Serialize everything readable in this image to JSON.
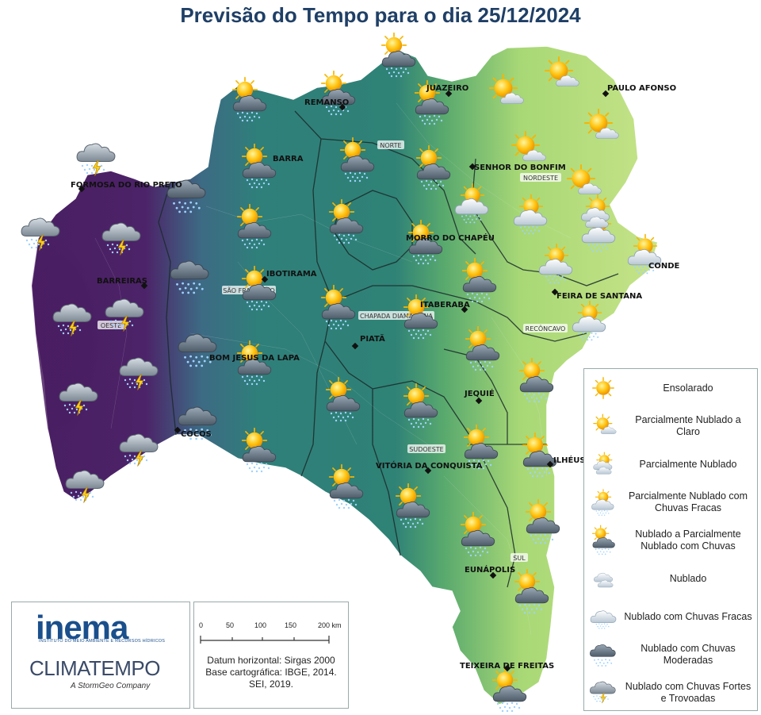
{
  "title": "Previsão do Tempo para o dia 25/12/2024",
  "cities": [
    {
      "name": "REMANSO"
    },
    {
      "name": "JUAZEIRO"
    },
    {
      "name": "PAULO AFONSO"
    },
    {
      "name": "BARRA"
    },
    {
      "name": "SENHOR DO BONFIM"
    },
    {
      "name": "FORMOSA DO RIO PRETO"
    },
    {
      "name": "MORRO DO CHAPÉU"
    },
    {
      "name": "CONDE"
    },
    {
      "name": "BARREIRAS"
    },
    {
      "name": "IBOTIRAMA"
    },
    {
      "name": "FEIRA DE SANTANA"
    },
    {
      "name": "ITABERABA"
    },
    {
      "name": "PIATÃ"
    },
    {
      "name": "BOM JESUS DA LAPA"
    },
    {
      "name": "JEQUIÉ"
    },
    {
      "name": "COCOS"
    },
    {
      "name": "ILHÉUS"
    },
    {
      "name": "VITÓRIA DA CONQUISTA"
    },
    {
      "name": "EUNÁPOLIS"
    },
    {
      "name": "TEIXEIRA DE FREITAS"
    }
  ],
  "regions": [
    "NORTE",
    "NORDESTE",
    "SÃO FRANCISCO",
    "OESTE",
    "CHAPADA DIAMANTINA",
    "RECÔNCAVO",
    "SUDOESTE",
    "SUL"
  ],
  "legend": [
    {
      "label": "Ensolarado",
      "icon": "sunny-icon"
    },
    {
      "label": "Parcialmente Nublado a Claro",
      "icon": "partly-cloudy-clear-icon"
    },
    {
      "label": "Parcialmente Nublado",
      "icon": "partly-cloudy-icon"
    },
    {
      "label": "Parcialmente Nublado com Chuvas Fracas",
      "icon": "partly-cloudy-light-rain-icon"
    },
    {
      "label": "Nublado a Parcialmente Nublado com Chuvas",
      "icon": "cloudy-partly-rain-icon"
    },
    {
      "label": "Nublado",
      "icon": "cloudy-icon"
    },
    {
      "label": "Nublado com Chuvas Fracas",
      "icon": "cloudy-light-rain-icon"
    },
    {
      "label": "Nublado com Chuvas Moderadas",
      "icon": "cloudy-moderate-rain-icon"
    },
    {
      "label": "Nublado com Chuvas Fortes e Trovoadas",
      "icon": "cloudy-heavy-rain-thunder-icon"
    }
  ],
  "map_forecast": {
    "sunny": 0,
    "partly_cloudy_clear": 6,
    "partly_cloudy": 1,
    "partly_cloudy_light_rain": 6,
    "cloudy_partly_rain": 28,
    "cloudy": 0,
    "cloudy_light_rain": 0,
    "cloudy_moderate_rain": 5,
    "cloudy_heavy_rain_thunder": 9
  },
  "logos": {
    "inema": "inema",
    "inema_sub": "INSTITUTO DO MEIO AMBIENTE E RECURSOS HÍDRICOS",
    "climatempo": "CLIMATEMPO",
    "climatempo_sub": "A StormGeo Company"
  },
  "scale": {
    "ticks": [
      "0",
      "50",
      "100",
      "150",
      "200 km"
    ],
    "datum_line1": "Datum horizontal: Sirgas 2000",
    "datum_line2": "Base cartográfica: IBGE, 2014.",
    "datum_line3": "SEI, 2019."
  },
  "colors": {
    "title": "#1f3f66",
    "west": "#4b2065",
    "central": "#2f7f7a",
    "northeast": "#b4dc78"
  }
}
